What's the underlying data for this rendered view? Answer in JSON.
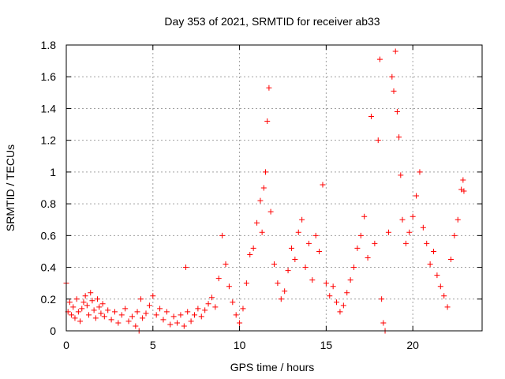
{
  "chart_data": {
    "type": "scatter",
    "title": "Day 353 of 2021, SRMTID for receiver ab33",
    "xlabel": "GPS time / hours",
    "ylabel": "SRMTID / TECUs",
    "xlim": [
      0,
      24
    ],
    "ylim": [
      0,
      1.8
    ],
    "x_ticks": [
      0,
      5,
      10,
      15,
      20
    ],
    "x_tick_labels": [
      "0",
      "5",
      "10",
      "15",
      "20"
    ],
    "y_ticks": [
      0,
      0.2,
      0.4,
      0.6,
      0.8,
      1.0,
      1.2,
      1.4,
      1.6,
      1.8
    ],
    "y_tick_labels": [
      "0",
      "0.2",
      "0.4",
      "0.6",
      "0.8",
      "1",
      "1.2",
      "1.4",
      "1.6",
      "1.8"
    ],
    "grid": true,
    "marker": "+",
    "color": "#ff0000",
    "series": [
      {
        "name": "SRMTID",
        "points": [
          [
            0.0,
            0.3
          ],
          [
            0.1,
            0.12
          ],
          [
            0.2,
            0.18
          ],
          [
            0.3,
            0.1
          ],
          [
            0.4,
            0.15
          ],
          [
            0.5,
            0.08
          ],
          [
            0.6,
            0.2
          ],
          [
            0.7,
            0.12
          ],
          [
            0.8,
            0.06
          ],
          [
            0.9,
            0.14
          ],
          [
            1.0,
            0.18
          ],
          [
            1.1,
            0.22
          ],
          [
            1.2,
            0.16
          ],
          [
            1.3,
            0.1
          ],
          [
            1.4,
            0.24
          ],
          [
            1.5,
            0.19
          ],
          [
            1.6,
            0.13
          ],
          [
            1.7,
            0.08
          ],
          [
            1.8,
            0.2
          ],
          [
            1.9,
            0.15
          ],
          [
            2.0,
            0.11
          ],
          [
            2.1,
            0.17
          ],
          [
            2.2,
            0.09
          ],
          [
            2.4,
            0.13
          ],
          [
            2.6,
            0.07
          ],
          [
            2.8,
            0.12
          ],
          [
            3.0,
            0.05
          ],
          [
            3.2,
            0.1
          ],
          [
            3.4,
            0.14
          ],
          [
            3.6,
            0.06
          ],
          [
            3.8,
            0.09
          ],
          [
            4.0,
            0.03
          ],
          [
            4.1,
            0.12
          ],
          [
            4.2,
            0.0
          ],
          [
            4.3,
            0.2
          ],
          [
            4.4,
            0.08
          ],
          [
            4.6,
            0.11
          ],
          [
            4.8,
            0.16
          ],
          [
            5.0,
            0.22
          ],
          [
            5.2,
            0.1
          ],
          [
            5.4,
            0.14
          ],
          [
            5.6,
            0.07
          ],
          [
            5.8,
            0.12
          ],
          [
            6.0,
            0.04
          ],
          [
            6.2,
            0.09
          ],
          [
            6.4,
            0.05
          ],
          [
            6.6,
            0.1
          ],
          [
            6.8,
            0.03
          ],
          [
            6.9,
            0.4
          ],
          [
            7.0,
            0.12
          ],
          [
            7.2,
            0.06
          ],
          [
            7.4,
            0.1
          ],
          [
            7.6,
            0.14
          ],
          [
            7.8,
            0.09
          ],
          [
            8.0,
            0.13
          ],
          [
            8.2,
            0.17
          ],
          [
            8.4,
            0.21
          ],
          [
            8.6,
            0.15
          ],
          [
            8.8,
            0.33
          ],
          [
            9.0,
            0.6
          ],
          [
            9.2,
            0.42
          ],
          [
            9.4,
            0.28
          ],
          [
            9.6,
            0.18
          ],
          [
            9.8,
            0.1
          ],
          [
            10.0,
            0.05
          ],
          [
            10.2,
            0.14
          ],
          [
            10.4,
            0.3
          ],
          [
            10.6,
            0.48
          ],
          [
            10.8,
            0.52
          ],
          [
            11.0,
            0.68
          ],
          [
            11.2,
            0.82
          ],
          [
            11.3,
            0.62
          ],
          [
            11.4,
            0.9
          ],
          [
            11.5,
            1.0
          ],
          [
            11.6,
            1.32
          ],
          [
            11.7,
            1.53
          ],
          [
            11.8,
            0.75
          ],
          [
            12.0,
            0.42
          ],
          [
            12.2,
            0.3
          ],
          [
            12.4,
            0.2
          ],
          [
            12.6,
            0.25
          ],
          [
            12.8,
            0.38
          ],
          [
            13.0,
            0.52
          ],
          [
            13.2,
            0.45
          ],
          [
            13.4,
            0.62
          ],
          [
            13.6,
            0.7
          ],
          [
            13.8,
            0.4
          ],
          [
            14.0,
            0.55
          ],
          [
            14.2,
            0.32
          ],
          [
            14.4,
            0.6
          ],
          [
            14.6,
            0.5
          ],
          [
            14.8,
            0.92
          ],
          [
            15.0,
            0.3
          ],
          [
            15.2,
            0.22
          ],
          [
            15.4,
            0.28
          ],
          [
            15.6,
            0.18
          ],
          [
            15.8,
            0.12
          ],
          [
            16.0,
            0.16
          ],
          [
            16.2,
            0.24
          ],
          [
            16.4,
            0.32
          ],
          [
            16.6,
            0.4
          ],
          [
            16.8,
            0.52
          ],
          [
            17.0,
            0.6
          ],
          [
            17.2,
            0.72
          ],
          [
            17.4,
            0.46
          ],
          [
            17.6,
            1.35
          ],
          [
            17.8,
            0.55
          ],
          [
            18.0,
            1.2
          ],
          [
            18.1,
            1.71
          ],
          [
            18.2,
            0.2
          ],
          [
            18.3,
            0.05
          ],
          [
            18.4,
            0.0
          ],
          [
            18.6,
            0.62
          ],
          [
            18.8,
            1.6
          ],
          [
            18.9,
            1.51
          ],
          [
            19.0,
            1.76
          ],
          [
            19.1,
            1.38
          ],
          [
            19.2,
            1.22
          ],
          [
            19.3,
            0.98
          ],
          [
            19.4,
            0.7
          ],
          [
            19.6,
            0.55
          ],
          [
            19.8,
            0.62
          ],
          [
            20.0,
            0.72
          ],
          [
            20.2,
            0.85
          ],
          [
            20.4,
            1.0
          ],
          [
            20.6,
            0.65
          ],
          [
            20.8,
            0.55
          ],
          [
            21.0,
            0.42
          ],
          [
            21.2,
            0.5
          ],
          [
            21.4,
            0.35
          ],
          [
            21.6,
            0.28
          ],
          [
            21.8,
            0.22
          ],
          [
            22.0,
            0.15
          ],
          [
            22.2,
            0.45
          ],
          [
            22.4,
            0.6
          ],
          [
            22.6,
            0.7
          ],
          [
            22.8,
            0.89
          ],
          [
            22.9,
            0.95
          ],
          [
            22.95,
            0.88
          ]
        ]
      }
    ]
  }
}
